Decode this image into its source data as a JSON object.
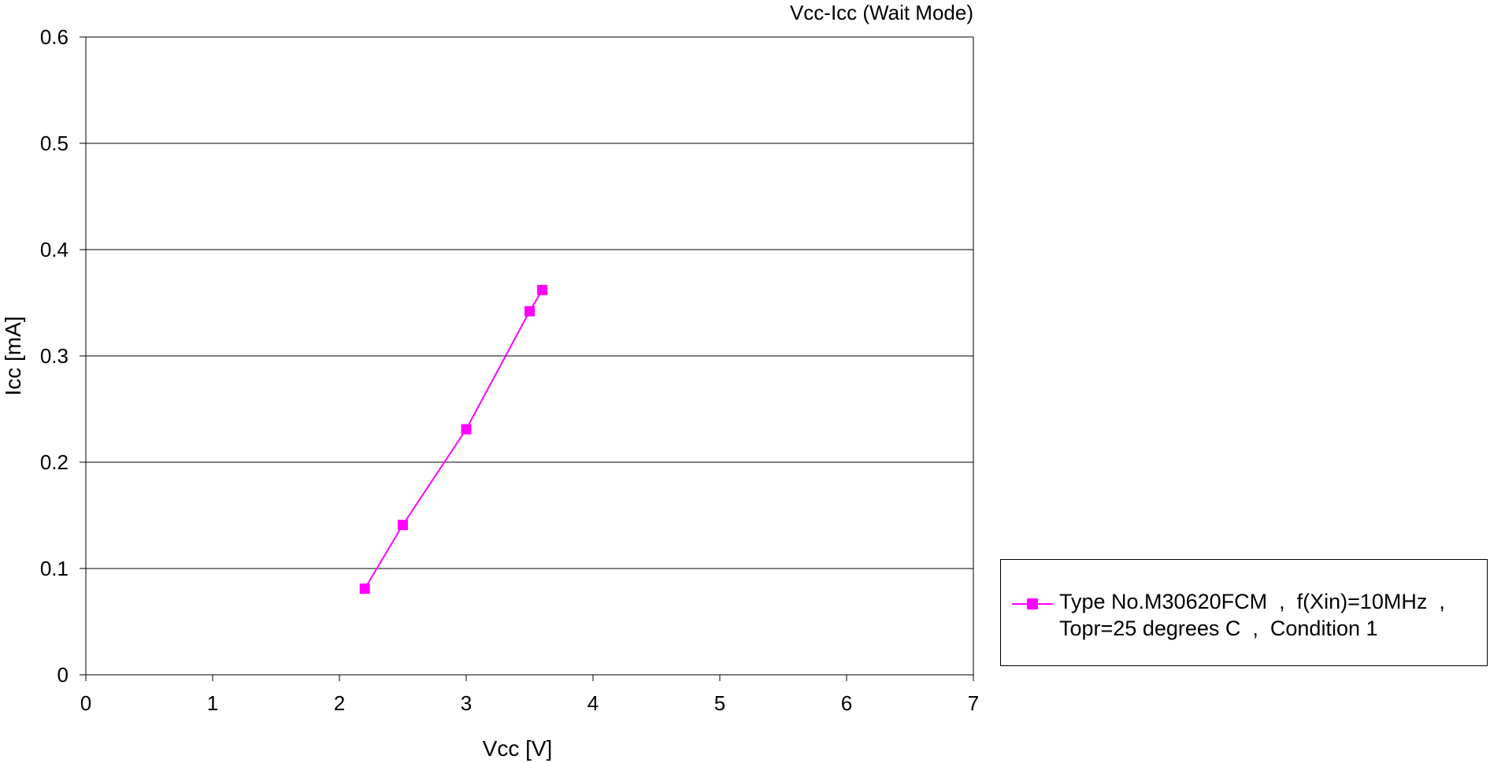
{
  "chart_data": {
    "type": "line",
    "title": "Vcc-Icc (Wait Mode)",
    "xlabel": "Vcc [V]",
    "ylabel": "Icc [mA]",
    "xlim": [
      0,
      7
    ],
    "ylim": [
      0,
      0.6
    ],
    "xticks": [
      "0",
      "1",
      "2",
      "3",
      "4",
      "5",
      "6",
      "7"
    ],
    "yticks": [
      "0",
      "0.1",
      "0.2",
      "0.3",
      "0.4",
      "0.5",
      "0.6"
    ],
    "grid": "horizontal",
    "legend_position": "right",
    "series": [
      {
        "name": "Type No.M30620FCM  ,  f(Xin)=10MHz  ,\nTopr=25 degrees C  ,  Condition 1",
        "color": "#ff00ff",
        "marker": "square",
        "x": [
          2.2,
          2.5,
          3.0,
          3.5,
          3.6
        ],
        "y": [
          0.081,
          0.141,
          0.231,
          0.342,
          0.362
        ]
      }
    ]
  }
}
